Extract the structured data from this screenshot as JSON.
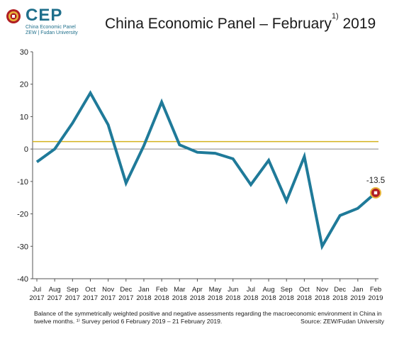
{
  "logo": {
    "text": "CEP",
    "subtitle1": "China Economic Panel",
    "subtitle2": "ZEW | Fudan University"
  },
  "title": {
    "main": "China Economic Panel – February",
    "superscript": "1)",
    "year": " 2019"
  },
  "chart_data": {
    "type": "line",
    "title": "China Economic Panel – February 2019",
    "xlabel": "",
    "ylabel": "",
    "ylim": [
      -40,
      30
    ],
    "yticks": [
      30,
      20,
      10,
      0,
      -10,
      -20,
      -30,
      -40
    ],
    "grid": false,
    "categories": [
      [
        "Jul",
        "2017"
      ],
      [
        "Aug",
        "2017"
      ],
      [
        "Sep",
        "2017"
      ],
      [
        "Oct",
        "2017"
      ],
      [
        "Nov",
        "2017"
      ],
      [
        "Dec",
        "2017"
      ],
      [
        "Jan",
        "2018"
      ],
      [
        "Feb",
        "2018"
      ],
      [
        "Mar",
        "2018"
      ],
      [
        "Apr",
        "2018"
      ],
      [
        "May",
        "2018"
      ],
      [
        "Jun",
        "2018"
      ],
      [
        "Jul",
        "2018"
      ],
      [
        "Aug",
        "2018"
      ],
      [
        "Sep",
        "2018"
      ],
      [
        "Oct",
        "2018"
      ],
      [
        "Nov",
        "2018"
      ],
      [
        "Dec",
        "2018"
      ],
      [
        "Jan",
        "2019"
      ],
      [
        "Feb",
        "2019"
      ]
    ],
    "series": [
      {
        "color": "#1f7a99",
        "values": [
          -4.0,
          0.0,
          8.0,
          17.3,
          7.5,
          -10.5,
          1.0,
          14.5,
          1.3,
          -1.0,
          -1.3,
          -3.0,
          -11.0,
          -3.5,
          -16.0,
          -2.3,
          -30.0,
          -20.5,
          -18.3,
          -13.5
        ]
      }
    ],
    "reference_line": {
      "value": 2.3,
      "color": "#d4b21e"
    },
    "zero_line_color": "#888888",
    "last_point_label": "-13.5",
    "marker_color": "#b01e23"
  },
  "footnote": {
    "text": "Balance of the symmetrically weighted positive and negative assessments regarding the macroeconomic environment in China in twelve months. ¹⁾ Survey period 6 February 2019 – 21 February 2019.",
    "source": "Source: ZEW/Fudan University"
  }
}
